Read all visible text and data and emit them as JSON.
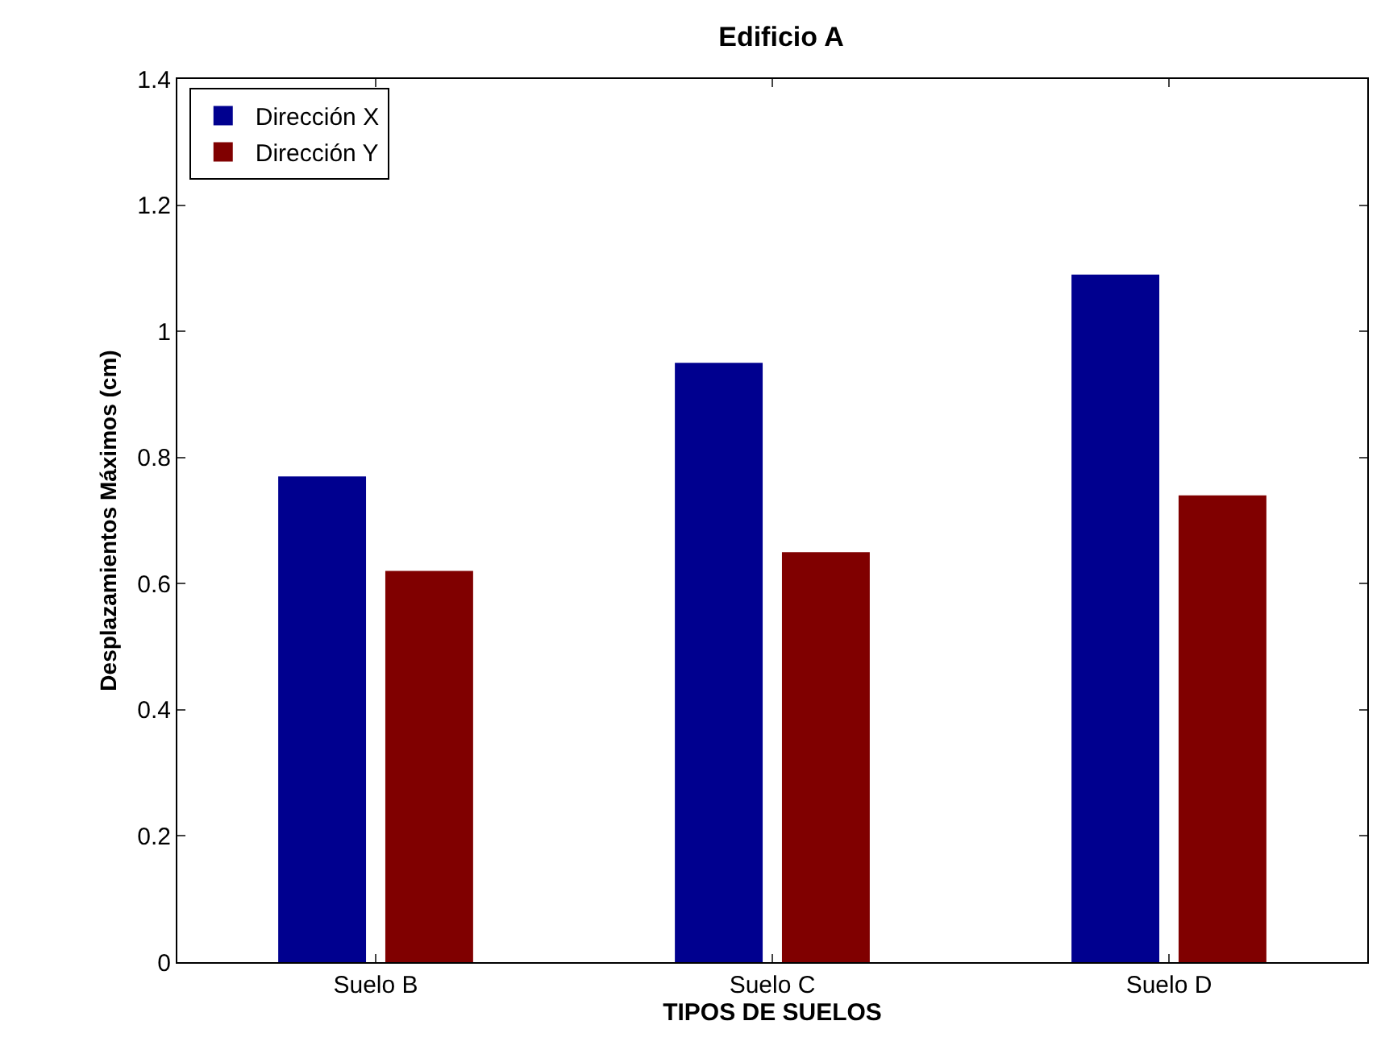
{
  "chart_data": {
    "type": "bar",
    "title": "Edificio A",
    "xlabel": "TIPOS DE SUELOS",
    "ylabel": "Desplazamientos Máximos (cm)",
    "categories": [
      "Suelo B",
      "Suelo C",
      "Suelo D"
    ],
    "series": [
      {
        "name": "Dirección X",
        "color": "#00008f",
        "values": [
          0.77,
          0.95,
          1.09
        ]
      },
      {
        "name": "Dirección Y",
        "color": "#800000",
        "values": [
          0.62,
          0.65,
          0.74
        ]
      }
    ],
    "ylim": [
      0,
      1.4
    ],
    "yticks": [
      0,
      0.2,
      0.4,
      0.6,
      0.8,
      1,
      1.2,
      1.4
    ],
    "grid": false,
    "legend": "top left"
  }
}
